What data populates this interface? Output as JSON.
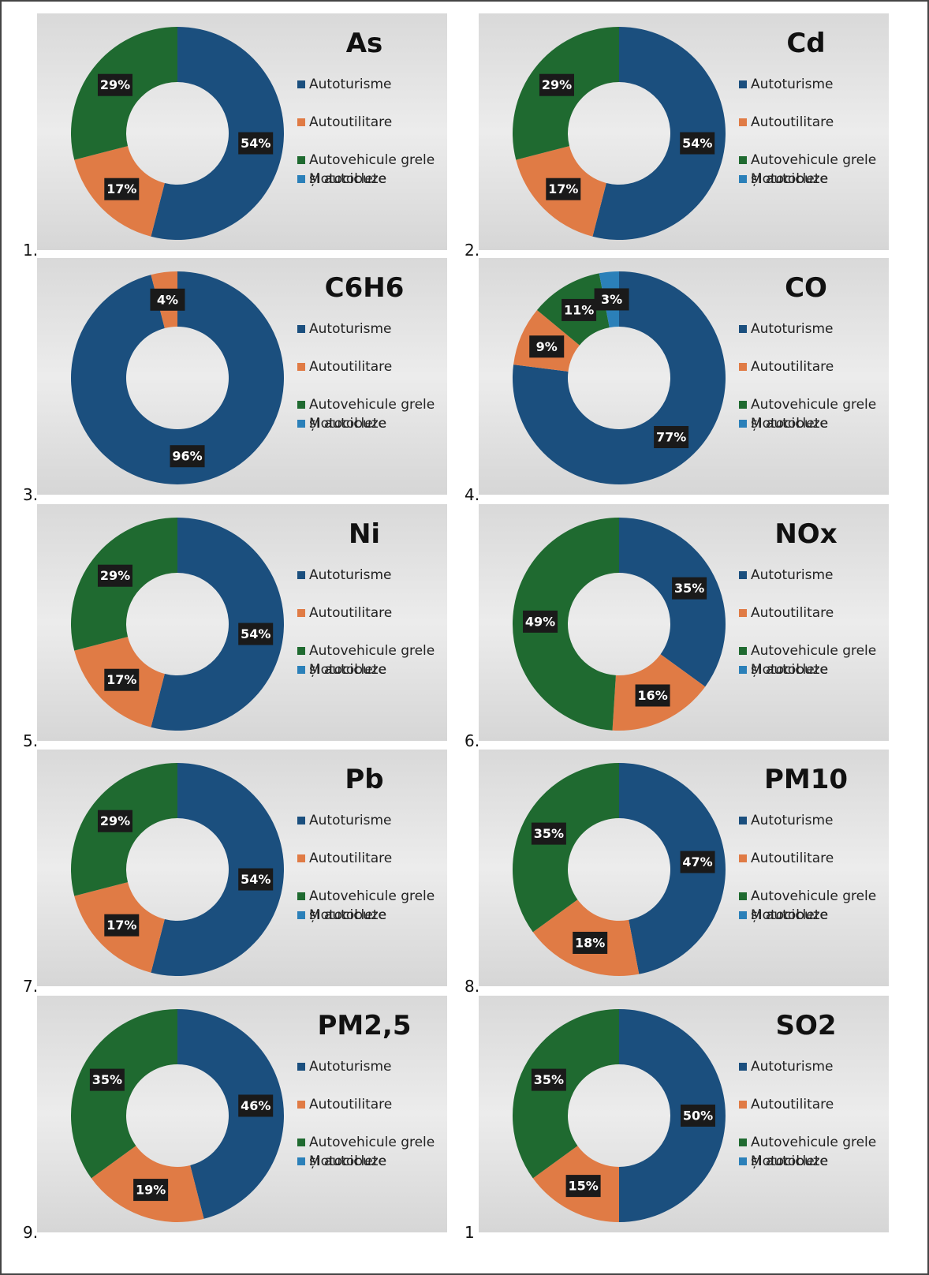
{
  "chart_data": [
    {
      "type": "pie",
      "label": "1.",
      "title": "As",
      "categories": [
        "Autoturisme",
        "Autoutilitare",
        "Autovehicule grele și autobuze",
        "Motociclete"
      ],
      "values": [
        54,
        17,
        29,
        0
      ],
      "value_labels": [
        "54%",
        "17%",
        "29%",
        null
      ],
      "colors": [
        "#1b4f7e",
        "#e07b45",
        "#1f6a30",
        "#2b80b9"
      ]
    },
    {
      "type": "pie",
      "label": "2.",
      "title": "Cd",
      "categories": [
        "Autoturisme",
        "Autoutilitare",
        "Autovehicule grele și autobuze",
        "Motociclete"
      ],
      "values": [
        54,
        17,
        29,
        0
      ],
      "value_labels": [
        "54%",
        "17%",
        "29%",
        null
      ],
      "colors": [
        "#1b4f7e",
        "#e07b45",
        "#1f6a30",
        "#2b80b9"
      ]
    },
    {
      "type": "pie",
      "label": "3.",
      "title": "C6H6",
      "categories": [
        "Autoturisme",
        "Autoutilitare",
        "Autovehicule grele și autobuze",
        "Motociclete"
      ],
      "values": [
        96,
        4,
        0,
        0
      ],
      "value_labels": [
        "96%",
        "4%",
        null,
        null
      ],
      "colors": [
        "#1b4f7e",
        "#e07b45",
        "#1f6a30",
        "#2b80b9"
      ]
    },
    {
      "type": "pie",
      "label": "4.",
      "title": "CO",
      "categories": [
        "Autoturisme",
        "Autoutilitare",
        "Autovehicule grele și autobuze",
        "Motociclete"
      ],
      "values": [
        77,
        9,
        11,
        3
      ],
      "value_labels": [
        "77%",
        "9%",
        "11%",
        "3%"
      ],
      "colors": [
        "#1b4f7e",
        "#e07b45",
        "#1f6a30",
        "#2b80b9"
      ]
    },
    {
      "type": "pie",
      "label": "5.",
      "title": "Ni",
      "categories": [
        "Autoturisme",
        "Autoutilitare",
        "Autovehicule grele și autobuze",
        "Motociclete"
      ],
      "values": [
        54,
        17,
        29,
        0
      ],
      "value_labels": [
        "54%",
        "17%",
        "29%",
        null
      ],
      "colors": [
        "#1b4f7e",
        "#e07b45",
        "#1f6a30",
        "#2b80b9"
      ]
    },
    {
      "type": "pie",
      "label": "6.",
      "title": "NOx",
      "categories": [
        "Autoturisme",
        "Autoutilitare",
        "Autovehicule grele și autobuze",
        "Motociclete"
      ],
      "values": [
        35,
        16,
        49,
        0
      ],
      "value_labels": [
        "35%",
        "16%",
        "49%",
        null
      ],
      "colors": [
        "#1b4f7e",
        "#e07b45",
        "#1f6a30",
        "#2b80b9"
      ]
    },
    {
      "type": "pie",
      "label": "7.",
      "title": "Pb",
      "categories": [
        "Autoturisme",
        "Autoutilitare",
        "Autovehicule grele și autobuze",
        "Motociclete"
      ],
      "values": [
        54,
        17,
        29,
        0
      ],
      "value_labels": [
        "54%",
        "17%",
        "29%",
        null
      ],
      "colors": [
        "#1b4f7e",
        "#e07b45",
        "#1f6a30",
        "#2b80b9"
      ]
    },
    {
      "type": "pie",
      "label": "8.",
      "title": "PM10",
      "categories": [
        "Autoturisme",
        "Autoutilitare",
        "Autovehicule grele și autobuze",
        "Motociclete"
      ],
      "values": [
        47,
        18,
        35,
        0
      ],
      "value_labels": [
        "47%",
        "18%",
        "35%",
        null
      ],
      "colors": [
        "#1b4f7e",
        "#e07b45",
        "#1f6a30",
        "#2b80b9"
      ]
    },
    {
      "type": "pie",
      "label": "9.",
      "title": "PM2,5",
      "categories": [
        "Autoturisme",
        "Autoutilitare",
        "Autovehicule grele și autobuze",
        "Motociclete"
      ],
      "values": [
        46,
        19,
        35,
        0
      ],
      "value_labels": [
        "46%",
        "19%",
        "35%",
        null
      ],
      "colors": [
        "#1b4f7e",
        "#e07b45",
        "#1f6a30",
        "#2b80b9"
      ]
    },
    {
      "type": "pie",
      "label": "1",
      "title": "SO2",
      "categories": [
        "Autoturisme",
        "Autoutilitare",
        "Autovehicule grele și autobuze",
        "Motociclete"
      ],
      "values": [
        50,
        15,
        35,
        0
      ],
      "value_labels": [
        "50%",
        "15%",
        "35%",
        null
      ],
      "colors": [
        "#1b4f7e",
        "#e07b45",
        "#1f6a30",
        "#2b80b9"
      ]
    }
  ]
}
